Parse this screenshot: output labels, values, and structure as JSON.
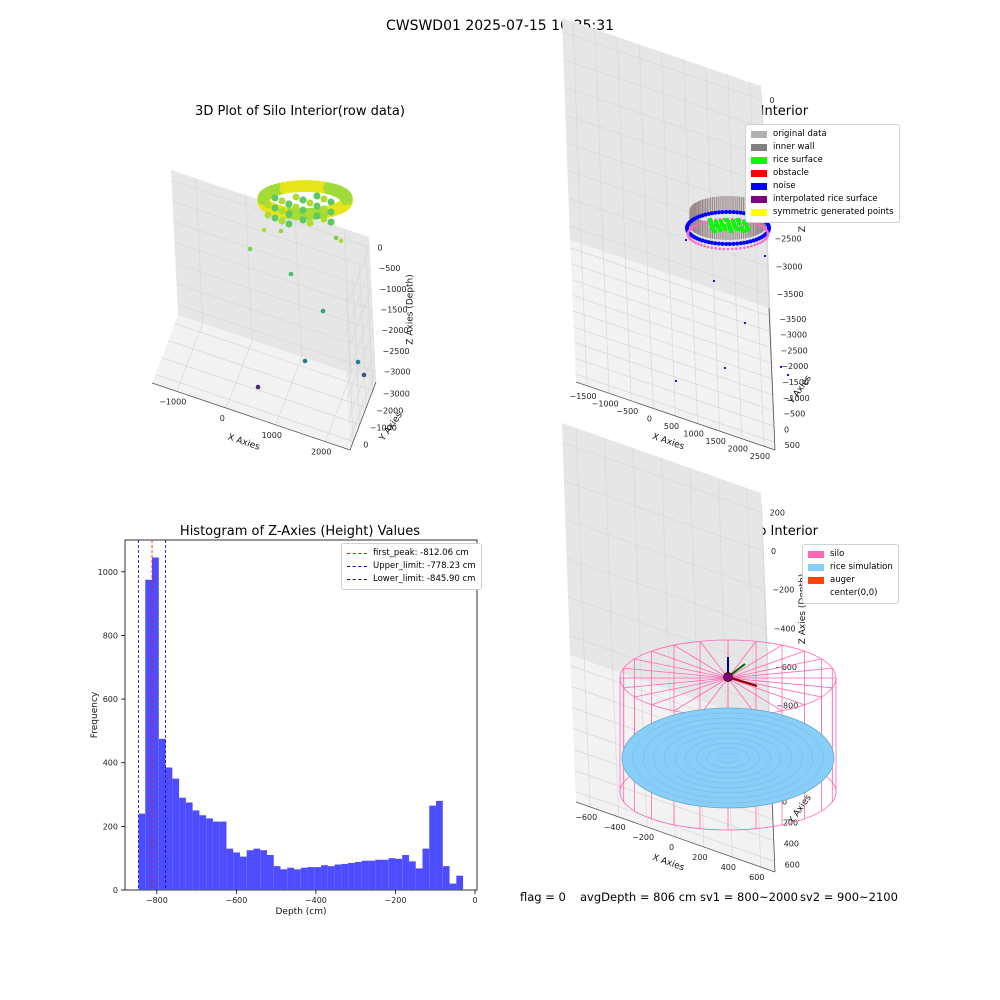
{
  "suptitle": "CWSWD01 2025-07-15 10:25:31",
  "footer": {
    "flag": "flag = 0",
    "avg": "avgDepth = 806 cm",
    "sv1": "sv1 = 800~2000",
    "sv2": "sv2 = 900~2100"
  },
  "colors": {
    "hist_bar": "#4d4dff",
    "first_peak": "#ff0000",
    "limits": "#0000aa",
    "silo": "#ff69b4",
    "rice_sim": "#87cefa",
    "auger": "#ff4500",
    "green": "#00ff00",
    "noise": "#0000ff",
    "purple": "#800080",
    "yellow": "#ffff00",
    "gray": "#808080",
    "light_gray": "#b0b0b0"
  },
  "chart_data": [
    {
      "type": "scatter",
      "kind": "3d",
      "title": "3D Plot of Silo Interior(row data)",
      "xlabel": "X Axies",
      "ylabel": "Y Axies",
      "zlabel": "Z Axies (Depth)",
      "xticks": [
        "−1000",
        "0",
        "1000",
        "2000"
      ],
      "yticks": [
        "0",
        "−1000",
        "−2000",
        "−3000"
      ],
      "zticks": [
        "0",
        "−500",
        "−1000",
        "−1500",
        "−2000",
        "−2500",
        "−3000"
      ],
      "colormap": "viridis"
    },
    {
      "type": "scatter",
      "kind": "3d",
      "title": "3D classify of Silo Interior",
      "xlabel": "X Axies",
      "ylabel": "Y Axies",
      "zlabel": "Z Axies (Depth)",
      "xticks": [
        "−1500",
        "−1000",
        "−500",
        "0",
        "500",
        "1000",
        "1500",
        "2000",
        "2500"
      ],
      "yticks": [
        "500",
        "0",
        "−500",
        "−1000",
        "−1500",
        "−2000",
        "−2500",
        "−3000",
        "−3500"
      ],
      "zticks": [
        "0",
        "−500",
        "−1000",
        "−1500",
        "−2000",
        "−2500",
        "−3000",
        "−3500"
      ],
      "legend": [
        {
          "label": "original data",
          "color": "#b0b0b0"
        },
        {
          "label": "inner wall",
          "color": "#808080"
        },
        {
          "label": "rice surface",
          "color": "#00ff00"
        },
        {
          "label": "obstacle",
          "color": "#ff0000"
        },
        {
          "label": "noise",
          "color": "#0000ff"
        },
        {
          "label": "interpolated rice surface",
          "color": "#800080"
        },
        {
          "label": "symmetric generated points",
          "color": "#ffff00"
        }
      ]
    },
    {
      "type": "bar",
      "title": "Histogram of Z-Axies (Height) Values",
      "xlabel": "Depth (cm)",
      "ylabel": "Frequency",
      "xlim": [
        -880,
        5
      ],
      "ylim": [
        0,
        1100
      ],
      "xticks": [
        -800,
        -600,
        -400,
        -200,
        0
      ],
      "xtick_labels": [
        "−800",
        "−600",
        "−400",
        "−200",
        "0"
      ],
      "yticks": [
        0,
        200,
        400,
        600,
        800,
        1000
      ],
      "bin_start": -846,
      "bin_width": 17,
      "values": [
        240,
        975,
        1045,
        475,
        385,
        350,
        290,
        275,
        250,
        235,
        225,
        215,
        215,
        130,
        118,
        105,
        125,
        130,
        125,
        110,
        75,
        65,
        70,
        65,
        70,
        72,
        72,
        78,
        75,
        80,
        82,
        85,
        88,
        92,
        92,
        95,
        95,
        100,
        98,
        110,
        90,
        68,
        130,
        265,
        280,
        75,
        20,
        45
      ],
      "vlines": [
        {
          "x": -812.06,
          "label": "first_peak: -812.06 cm",
          "color": "#ff0000"
        },
        {
          "x": -778.23,
          "label": "Upper_limit: -778.23 cm",
          "color": "#0000aa"
        },
        {
          "x": -845.9,
          "label": "Lower_limit: -845.90 cm",
          "color": "#0000aa"
        }
      ]
    },
    {
      "type": "scatter",
      "kind": "3d",
      "title": "3D simulation of Silo Interior",
      "xlabel": "X Axies",
      "ylabel": "Y Axies",
      "zlabel": "Z Axies (Depth)",
      "xticks": [
        "−600",
        "−400",
        "−200",
        "0",
        "200",
        "400",
        "600"
      ],
      "yticks": [
        "600",
        "400",
        "200",
        "0",
        "−200",
        "−400",
        "−600"
      ],
      "zticks": [
        "200",
        "0",
        "−200",
        "−400",
        "−600",
        "−800"
      ],
      "legend": [
        {
          "label": "silo",
          "color": "#ff69b4"
        },
        {
          "label": "rice simulation",
          "color": "#87cefa"
        },
        {
          "label": "auger",
          "color": "#ff4500"
        },
        {
          "label": "center(0,0)",
          "color": ""
        }
      ]
    }
  ]
}
